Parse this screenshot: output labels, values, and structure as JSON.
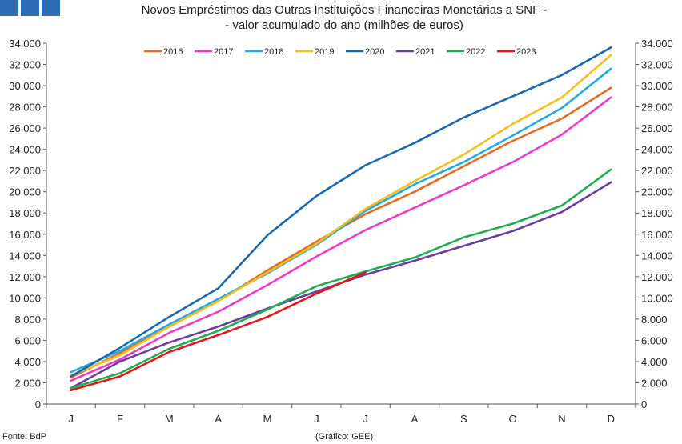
{
  "title_line1": "Novos Empréstimos das Outras Instituições Financeiras Monetárias a SNF -",
  "title_line2": "- valor acumulado do ano (milhões de euros)",
  "source": "Fonte: BdP",
  "credit": "(Gráfico: GEE)",
  "chart_data": {
    "type": "line",
    "title": "Novos Empréstimos das Outras Instituições Financeiras Monetárias a SNF - - valor acumulado do ano (milhões de euros)",
    "categories": [
      "J",
      "F",
      "M",
      "A",
      "M",
      "J",
      "J",
      "A",
      "S",
      "O",
      "N",
      "D"
    ],
    "ylim": [
      0,
      34000
    ],
    "ytick_step": 2000,
    "y_tick_labels": [
      "0",
      "2.000",
      "4.000",
      "6.000",
      "8.000",
      "10.000",
      "12.000",
      "14.000",
      "16.000",
      "18.000",
      "20.000",
      "22.000",
      "24.000",
      "26.000",
      "28.000",
      "30.000",
      "32.000",
      "34.000"
    ],
    "secondary_y_axis": true,
    "grid": false,
    "legend_position": "top",
    "series": [
      {
        "name": "2016",
        "color": "#e36c21",
        "values": [
          2500,
          4800,
          7300,
          9700,
          12600,
          15300,
          17900,
          20000,
          22400,
          24800,
          26900,
          29800
        ]
      },
      {
        "name": "2017",
        "color": "#ee3bc7",
        "values": [
          2200,
          4200,
          6700,
          8700,
          11200,
          13900,
          16400,
          18500,
          20600,
          22800,
          25400,
          28900
        ]
      },
      {
        "name": "2018",
        "color": "#22aaeb",
        "values": [
          3000,
          5000,
          7500,
          9900,
          12300,
          15000,
          18200,
          20700,
          22800,
          25300,
          27900,
          31600
        ]
      },
      {
        "name": "2019",
        "color": "#f7be1c",
        "values": [
          2700,
          4600,
          7300,
          9700,
          12400,
          15100,
          18400,
          21000,
          23500,
          26400,
          28900,
          32900
        ]
      },
      {
        "name": "2020",
        "color": "#1a69b3",
        "values": [
          2600,
          5300,
          8200,
          10900,
          15900,
          19600,
          22500,
          24600,
          27000,
          29000,
          31000,
          33600
        ]
      },
      {
        "name": "2021",
        "color": "#6a3c9c",
        "values": [
          1500,
          4000,
          5800,
          7300,
          9000,
          10600,
          12200,
          13500,
          14900,
          16300,
          18100,
          20900
        ]
      },
      {
        "name": "2022",
        "color": "#1fad54",
        "values": [
          1500,
          2900,
          5200,
          6900,
          8900,
          11100,
          12500,
          13800,
          15700,
          17000,
          18700,
          22100
        ]
      },
      {
        "name": "2023",
        "color": "#e3161b",
        "values": [
          1300,
          2600,
          4900,
          6500,
          8200,
          10400,
          12400,
          null,
          null,
          null,
          null,
          null
        ]
      }
    ]
  }
}
